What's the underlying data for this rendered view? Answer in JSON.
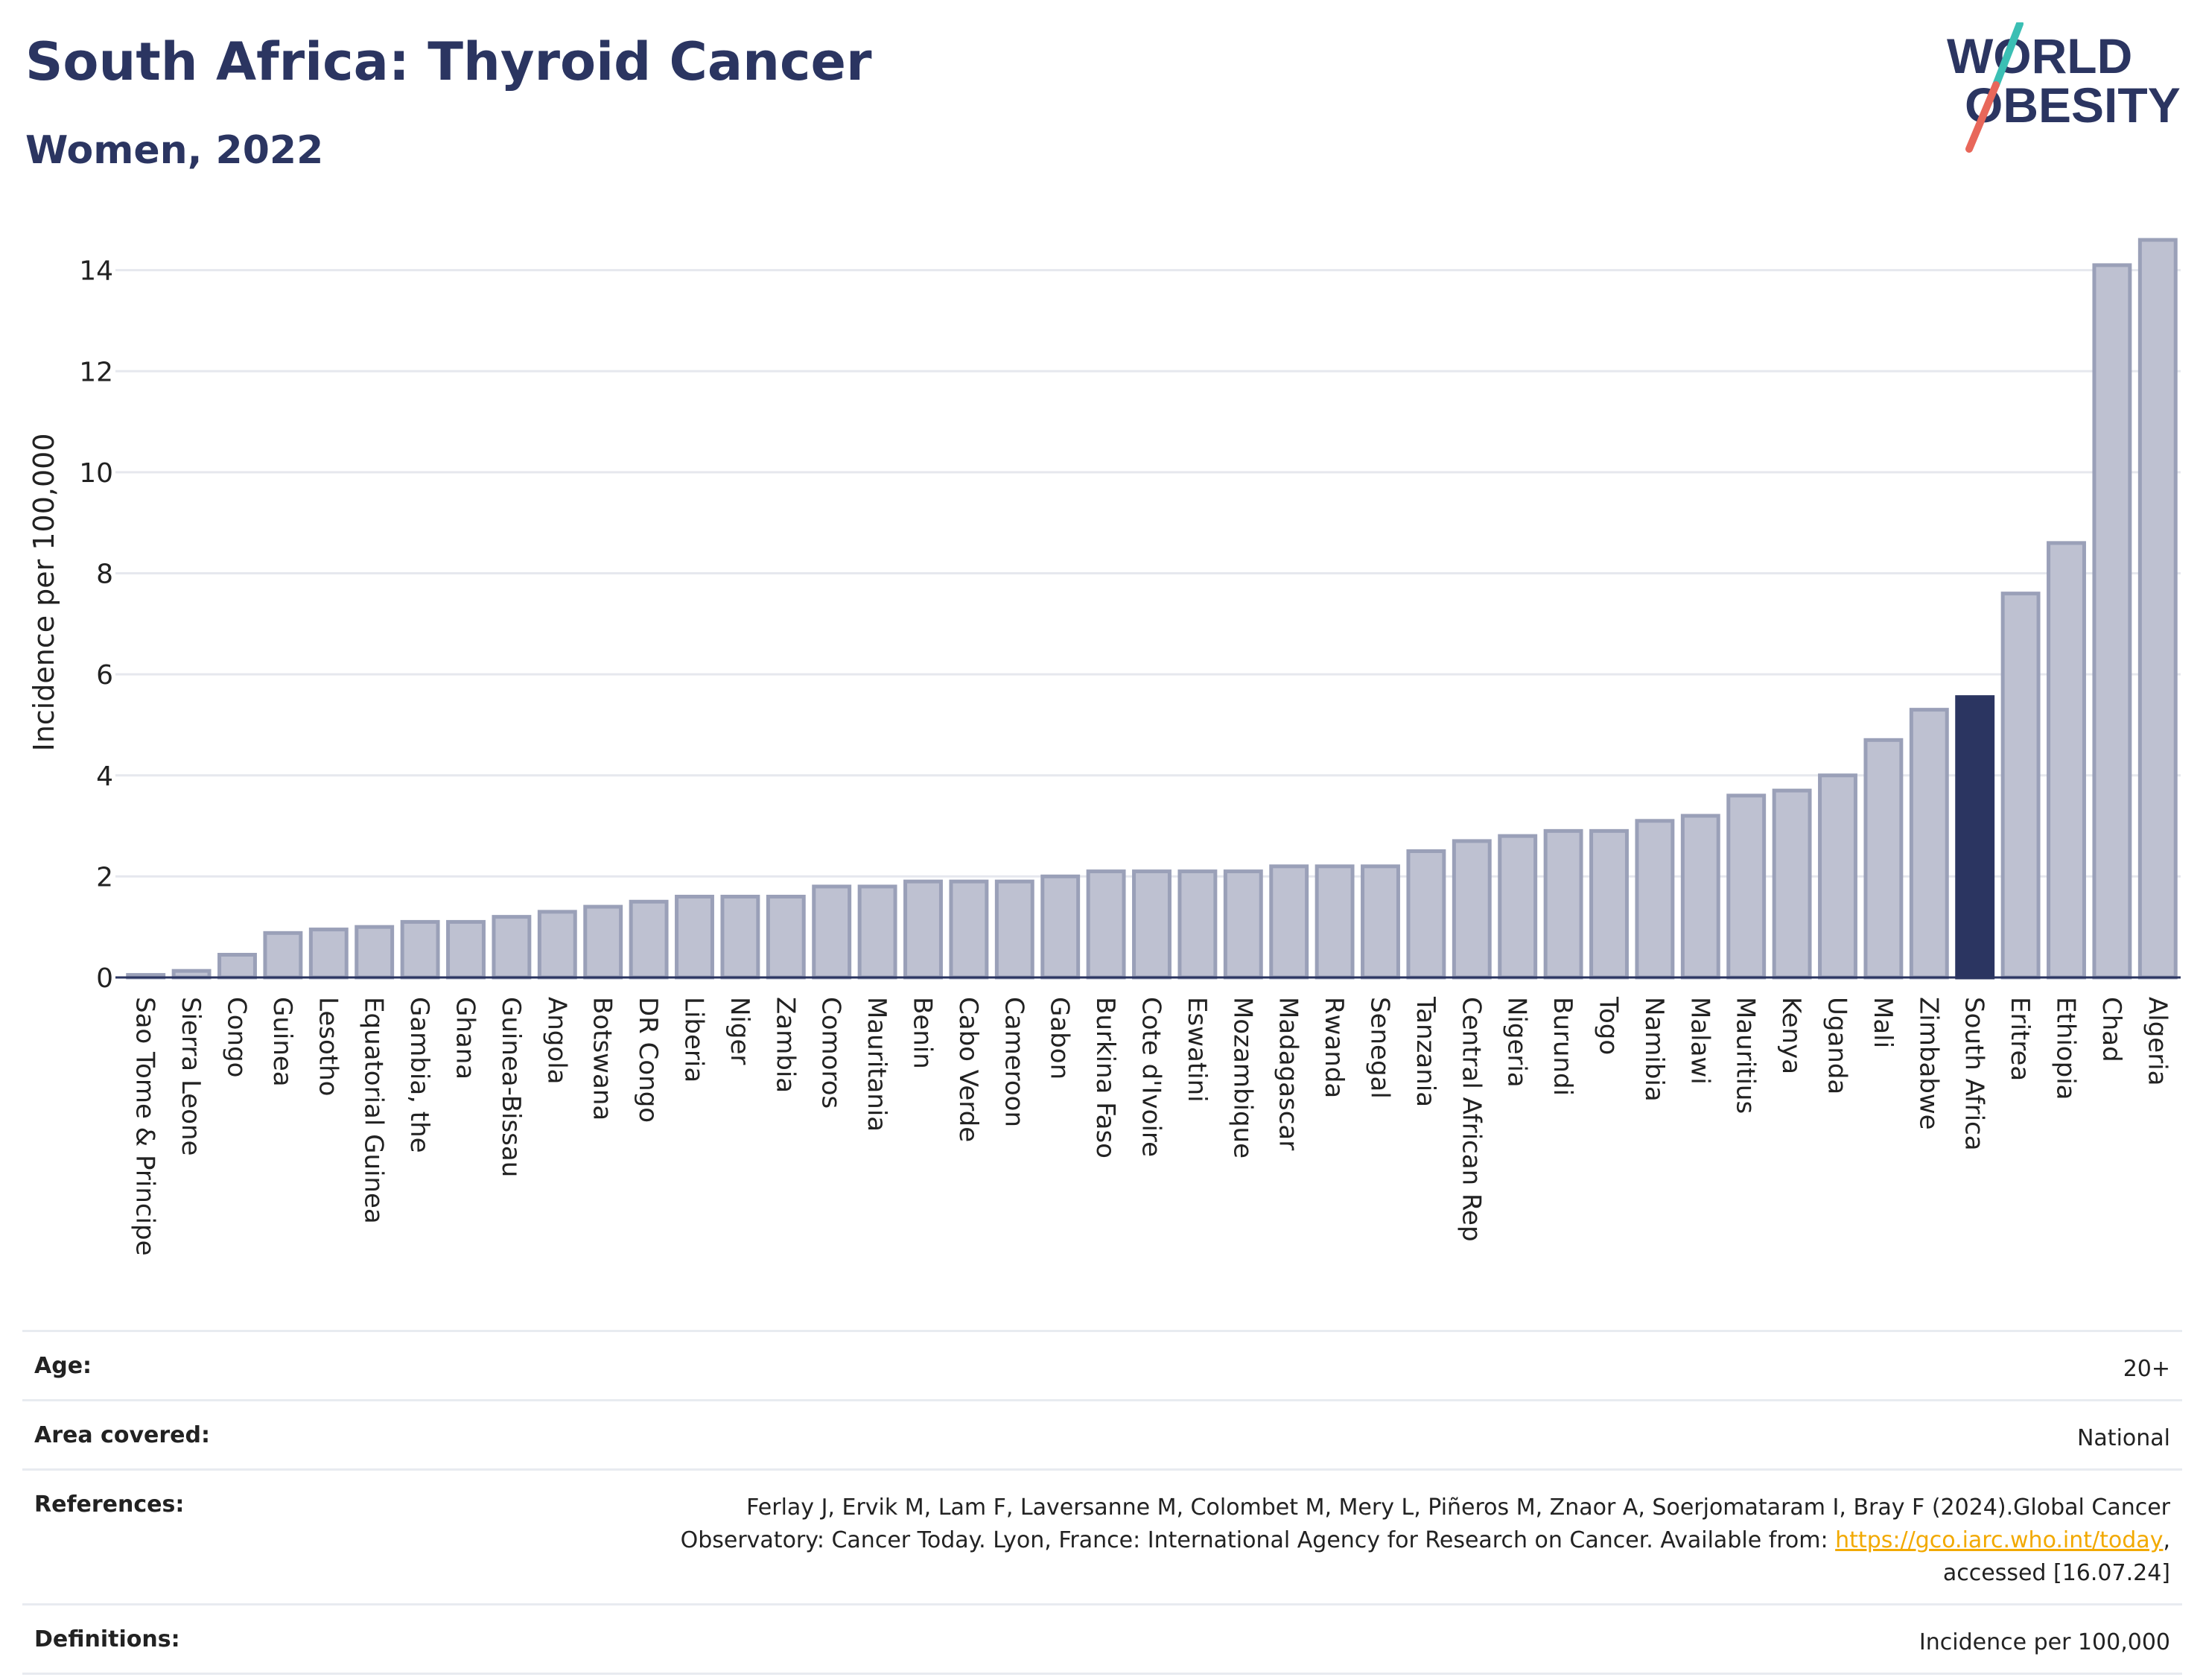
{
  "header": {
    "title": "South Africa: Thyroid Cancer",
    "subtitle": "Women, 2022",
    "logo_line1": "WORLD",
    "logo_line2": "OBESITY"
  },
  "colors": {
    "bar": "#bec1d1",
    "bar_border": "#9aa0b8",
    "highlight": "#2b3561",
    "title": "#2b3561",
    "link": "#f2a900",
    "logo_teal": "#3bbfb4",
    "logo_coral": "#e8675a"
  },
  "chart_data": {
    "type": "bar",
    "title": "South Africa: Thyroid Cancer",
    "subtitle": "Women, 2022",
    "ylabel": "Incidence per 100,000",
    "xlabel": "",
    "ylim": [
      0,
      14.6
    ],
    "yticks": [
      0,
      2,
      4,
      6,
      8,
      10,
      12,
      14
    ],
    "grid": true,
    "highlight": "South Africa",
    "categories": [
      "Sao Tome & Principe",
      "Sierra Leone",
      "Congo",
      "Guinea",
      "Lesotho",
      "Equatorial Guinea",
      "Gambia, the",
      "Ghana",
      "Guinea-Bissau",
      "Angola",
      "Botswana",
      "DR Congo",
      "Liberia",
      "Niger",
      "Zambia",
      "Comoros",
      "Mauritania",
      "Benin",
      "Cabo Verde",
      "Cameroon",
      "Gabon",
      "Burkina Faso",
      "Cote d'Ivoire",
      "Eswatini",
      "Mozambique",
      "Madagascar",
      "Rwanda",
      "Senegal",
      "Tanzania",
      "Central African Rep",
      "Nigeria",
      "Burundi",
      "Togo",
      "Namibia",
      "Malawi",
      "Mauritius",
      "Kenya",
      "Uganda",
      "Mali",
      "Zimbabwe",
      "South Africa",
      "Eritrea",
      "Ethiopia",
      "Chad",
      "Algeria"
    ],
    "values": [
      0.05,
      0.13,
      0.45,
      0.88,
      0.95,
      1.0,
      1.1,
      1.1,
      1.2,
      1.3,
      1.4,
      1.5,
      1.6,
      1.6,
      1.6,
      1.8,
      1.8,
      1.9,
      1.9,
      1.9,
      2.0,
      2.1,
      2.1,
      2.1,
      2.1,
      2.2,
      2.2,
      2.2,
      2.5,
      2.7,
      2.8,
      2.9,
      2.9,
      3.1,
      3.2,
      3.6,
      3.7,
      4.0,
      4.7,
      5.3,
      5.55,
      7.6,
      8.6,
      14.1,
      14.6
    ]
  },
  "meta": {
    "age_label": "Age:",
    "age_value": "20+",
    "area_label": "Area covered:",
    "area_value": "National",
    "references_label": "References:",
    "references_line1": "Ferlay J, Ervik M, Lam F, Laversanne M, Colombet M, Mery L, Piñeros M, Znaor A, Soerjomataram I, Bray F (2024).Global Cancer",
    "references_line2_pre": "Observatory: Cancer Today. Lyon, France: International Agency for Research on Cancer. Available from: ",
    "references_link": "https://gco.iarc.who.int/today",
    "references_line2_post": ",",
    "references_line3": "accessed [16.07.24]",
    "definitions_label": "Definitions:",
    "definitions_value": "Incidence per 100,000"
  }
}
